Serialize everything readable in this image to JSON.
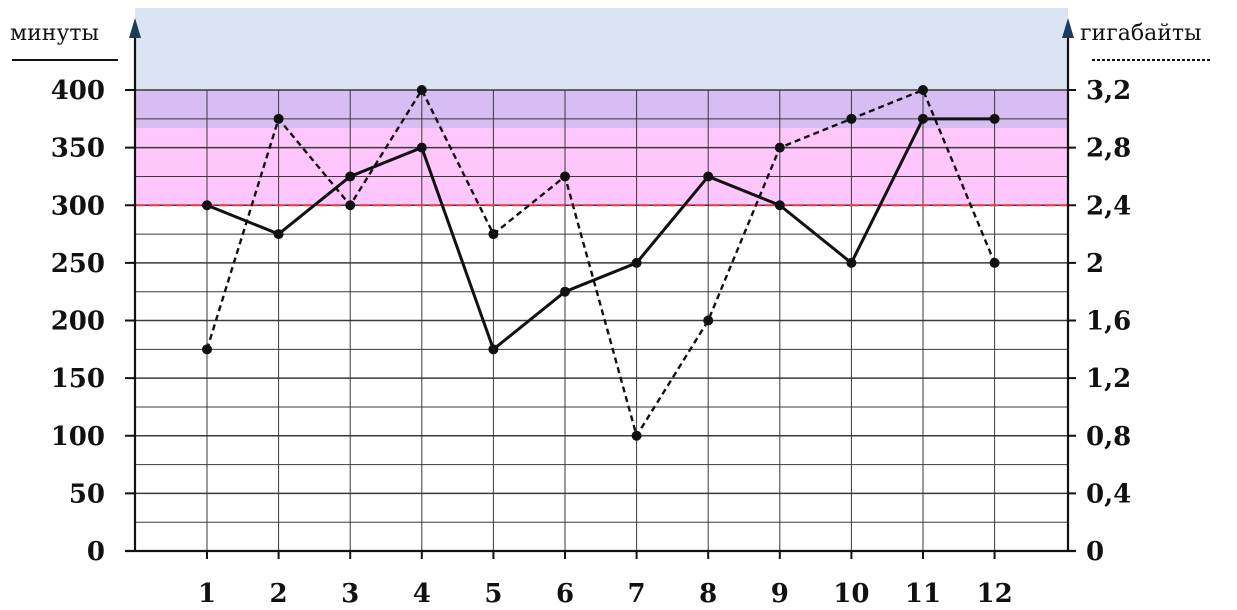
{
  "chart_data": {
    "type": "line",
    "title": "",
    "x": [
      1,
      2,
      3,
      4,
      5,
      6,
      7,
      8,
      9,
      10,
      11,
      12
    ],
    "x_tick_labels": [
      "1",
      "2",
      "3",
      "4",
      "5",
      "6",
      "7",
      "8",
      "9",
      "10",
      "11",
      "12"
    ],
    "y_left": {
      "label": "минуты",
      "ylim": [
        0,
        400
      ],
      "tick_labels": [
        "0",
        "50",
        "100",
        "150",
        "200",
        "250",
        "300",
        "350",
        "400"
      ]
    },
    "y_right": {
      "label": "гигабайты",
      "ylim": [
        0,
        3.2
      ],
      "tick_labels": [
        "0",
        "0,4",
        "0,8",
        "1,2",
        "1,6",
        "2",
        "2,4",
        "2,8",
        "3,2"
      ]
    },
    "series": [
      {
        "axis": "left",
        "style": "solid",
        "values": [
          300,
          275,
          325,
          350,
          175,
          225,
          250,
          325,
          300,
          250,
          375,
          375
        ]
      },
      {
        "axis": "right",
        "style": "dashed",
        "values": [
          1.4,
          3.0,
          2.4,
          3.2,
          2.2,
          2.6,
          0.8,
          1.6,
          2.8,
          3.0,
          3.2,
          2.0
        ]
      }
    ],
    "highlight_bands": [
      {
        "from": 400,
        "to": 465,
        "color": "#dae4f2"
      },
      {
        "from": 367,
        "to": 400,
        "color": "#d7bdf2"
      },
      {
        "from": 300,
        "to": 367,
        "color": "#ffc6fb"
      }
    ],
    "threshold_line": {
      "value": 300,
      "color": "#e03a3a",
      "style": "dashed"
    },
    "grid": true
  }
}
